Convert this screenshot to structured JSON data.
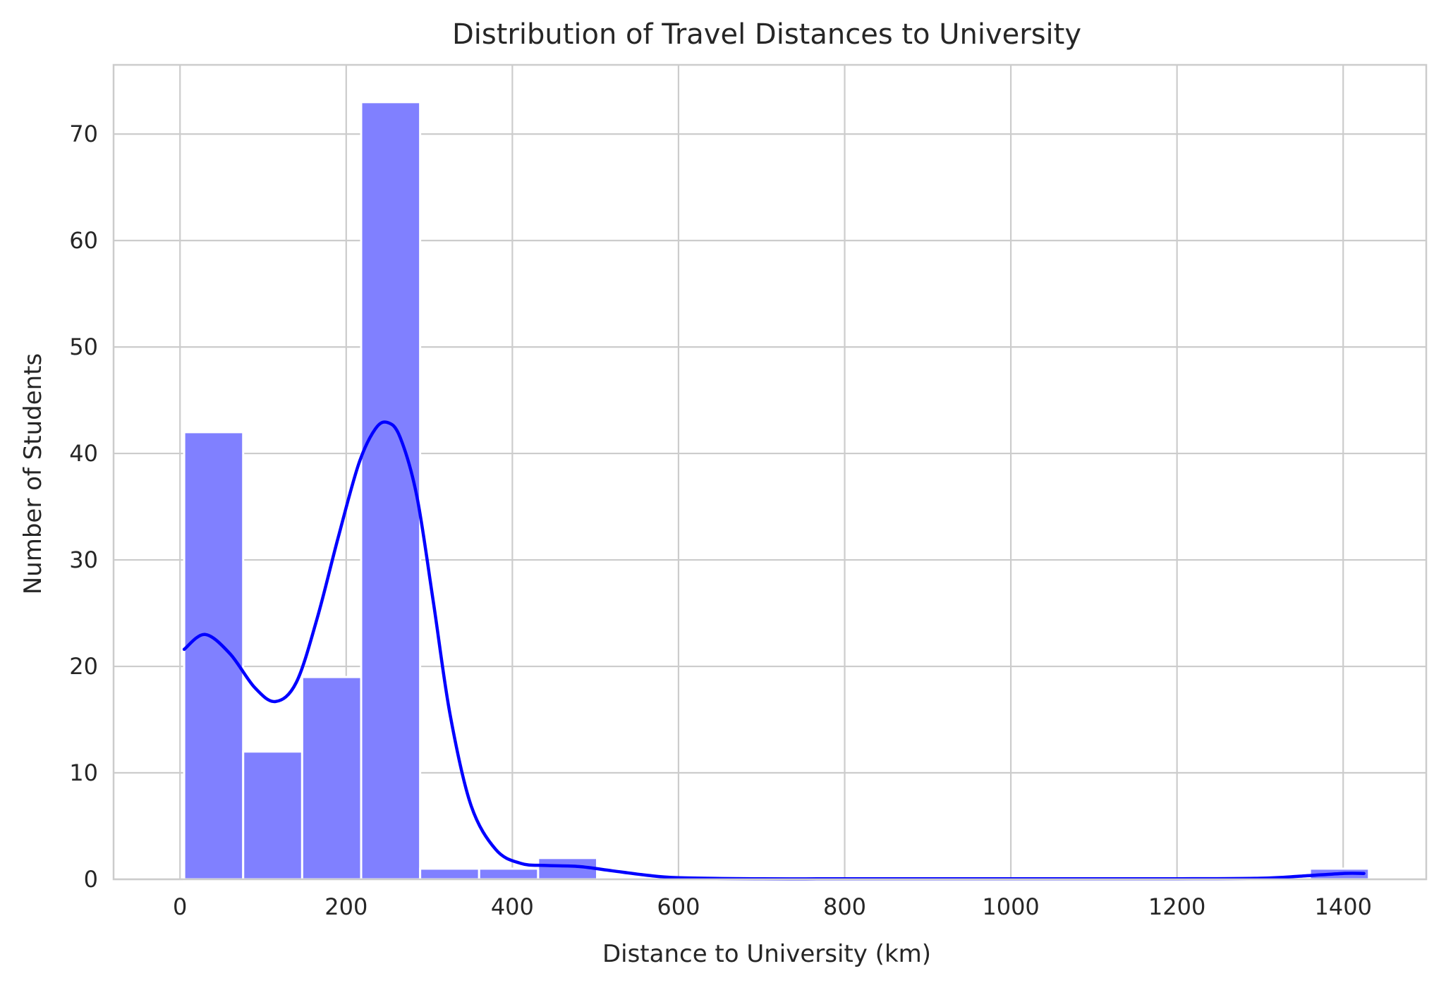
{
  "chart_data": {
    "type": "bar",
    "title": "Distribution of Travel Distances to University",
    "xlabel": "Distance to University (km)",
    "ylabel": "Number of Students",
    "xlim": [
      -80,
      1500
    ],
    "ylim": [
      0,
      76.5
    ],
    "x_ticks": [
      0,
      200,
      400,
      600,
      800,
      1000,
      1200,
      1400
    ],
    "y_ticks": [
      0,
      10,
      20,
      30,
      40,
      50,
      60,
      70
    ],
    "grid": true,
    "bins": [
      {
        "x0": 5,
        "x1": 76,
        "count": 42
      },
      {
        "x0": 76,
        "x1": 147,
        "count": 12
      },
      {
        "x0": 147,
        "x1": 218,
        "count": 19
      },
      {
        "x0": 218,
        "x1": 289,
        "count": 73
      },
      {
        "x0": 289,
        "x1": 360,
        "count": 1
      },
      {
        "x0": 360,
        "x1": 431,
        "count": 1
      },
      {
        "x0": 431,
        "x1": 502,
        "count": 2
      },
      {
        "x0": 1360,
        "x1": 1431,
        "count": 1
      }
    ],
    "kde": {
      "x": [
        5,
        30,
        60,
        90,
        115,
        140,
        165,
        190,
        215,
        235,
        250,
        265,
        285,
        305,
        325,
        350,
        380,
        410,
        440,
        480,
        520,
        560,
        600,
        700,
        800,
        900,
        1000,
        1100,
        1200,
        1300,
        1350,
        1400,
        1425
      ],
      "y": [
        21.6,
        23.0,
        21.2,
        18.0,
        16.7,
        18.5,
        24.5,
        32.0,
        39.0,
        42.3,
        42.9,
        41.5,
        36.0,
        26.0,
        15.5,
        7.0,
        2.8,
        1.5,
        1.3,
        1.2,
        0.8,
        0.4,
        0.15,
        0.05,
        0.05,
        0.05,
        0.05,
        0.05,
        0.05,
        0.1,
        0.3,
        0.55,
        0.55
      ]
    },
    "colors": {
      "bar_fill": "#8080ff",
      "bar_edge": "#ffffff",
      "kde_line": "#0000ff",
      "grid": "#cccccc",
      "spine": "#cccccc"
    }
  }
}
